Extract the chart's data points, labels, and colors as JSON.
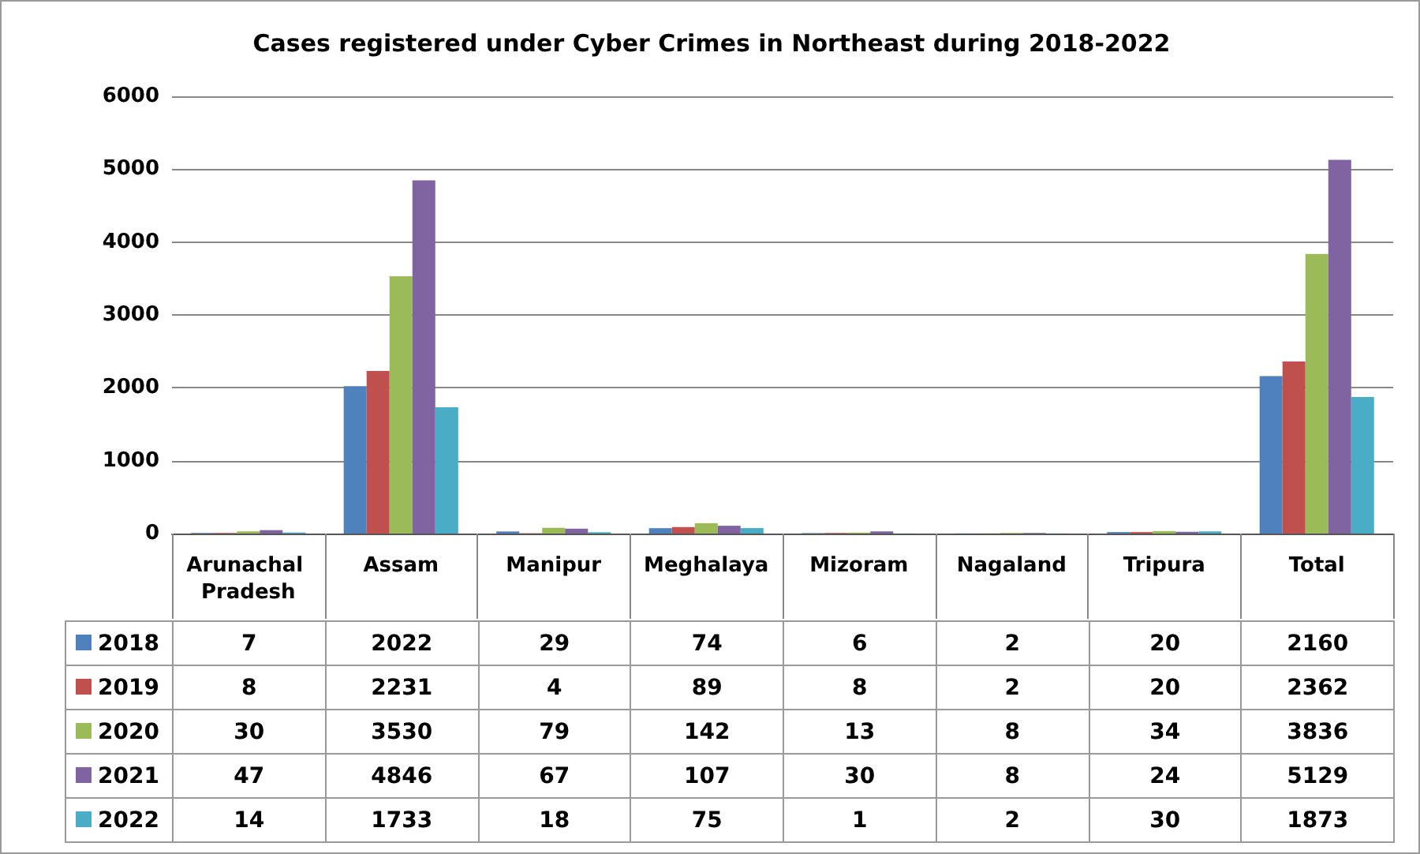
{
  "chart_data": {
    "type": "bar",
    "title": "Cases registered under Cyber Crimes in Northeast during 2018-2022",
    "categories": [
      "Arunachal Pradesh",
      "Assam",
      "Manipur",
      "Meghalaya",
      "Mizoram",
      "Nagaland",
      "Tripura",
      "Total"
    ],
    "series": [
      {
        "name": "2018",
        "color": "#4f81bd",
        "values": [
          7,
          2022,
          29,
          74,
          6,
          2,
          20,
          2160
        ]
      },
      {
        "name": "2019",
        "color": "#c0504d",
        "values": [
          8,
          2231,
          4,
          89,
          8,
          2,
          20,
          2362
        ]
      },
      {
        "name": "2020",
        "color": "#9bbb59",
        "values": [
          30,
          3530,
          79,
          142,
          13,
          8,
          34,
          3836
        ]
      },
      {
        "name": "2021",
        "color": "#8064a2",
        "values": [
          47,
          4846,
          67,
          107,
          30,
          8,
          24,
          5129
        ]
      },
      {
        "name": "2022",
        "color": "#4bacc6",
        "values": [
          14,
          1733,
          18,
          75,
          1,
          2,
          30,
          1873
        ]
      }
    ],
    "ylim": [
      0,
      6000
    ],
    "yticks": [
      0,
      1000,
      2000,
      3000,
      4000,
      5000,
      6000
    ],
    "grid": "y",
    "legend": "bottom left",
    "data_labels": true
  }
}
